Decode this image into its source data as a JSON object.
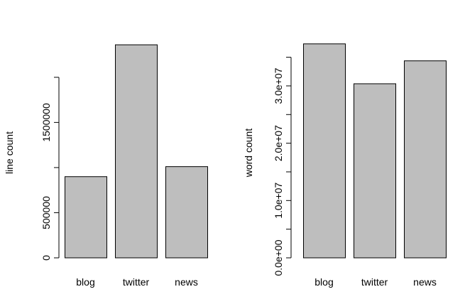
{
  "chart_data": [
    {
      "type": "bar",
      "ylabel": "line count",
      "categories": [
        "blog",
        "twitter",
        "news"
      ],
      "values": [
        899288,
        2360148,
        1010242
      ],
      "color": "#bebebe",
      "ylim": [
        0,
        2400000
      ],
      "yticks": [
        0,
        500000,
        {
          "value": 1000000,
          "label": null
        },
        1500000,
        {
          "value": 2000000,
          "label": null
        }
      ]
    },
    {
      "type": "bar",
      "ylabel": "word count",
      "categories": [
        "blog",
        "twitter",
        "news"
      ],
      "values": [
        37334131,
        30373583,
        34372530
      ],
      "color": "#bebebe",
      "ylim": [
        0,
        37800000
      ],
      "yticks": [
        {
          "value": 0,
          "label": "0.0e+00"
        },
        {
          "value": 5000000,
          "label": null
        },
        {
          "value": 10000000,
          "label": "1.0e+07"
        },
        {
          "value": 15000000,
          "label": null
        },
        {
          "value": 20000000,
          "label": "2.0e+07"
        },
        {
          "value": 25000000,
          "label": null
        },
        {
          "value": 30000000,
          "label": "3.0e+07"
        },
        {
          "value": 35000000,
          "label": null
        }
      ]
    }
  ]
}
